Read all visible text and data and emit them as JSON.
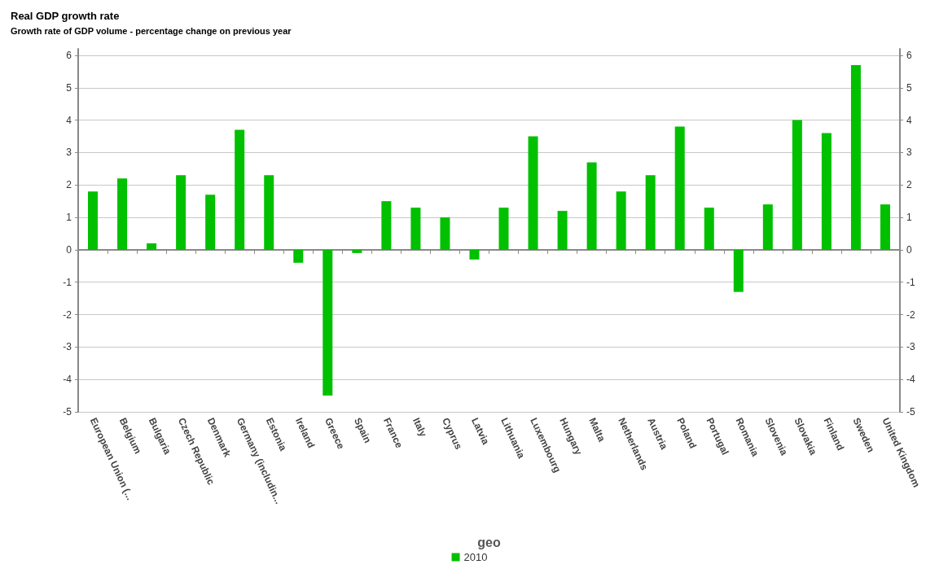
{
  "chart_data": {
    "type": "bar",
    "title": "Real GDP growth rate",
    "subtitle": "Growth rate of GDP volume - percentage change on previous year",
    "xlabel": "geo",
    "categories": [
      "European Union (...",
      "Belgium",
      "Bulgaria",
      "Czech Republic",
      "Denmark",
      "Germany (includin...",
      "Estonia",
      "Ireland",
      "Greece",
      "Spain",
      "France",
      "Italy",
      "Cyprus",
      "Latvia",
      "Lithuania",
      "Luxembourg",
      "Hungary",
      "Malta",
      "Netherlands",
      "Austria",
      "Poland",
      "Portugal",
      "Romania",
      "Slovenia",
      "Slovakia",
      "Finland",
      "Sweden",
      "United Kingdom"
    ],
    "series": [
      {
        "name": "2010",
        "color": "#00c000",
        "values": [
          1.8,
          2.2,
          0.2,
          2.3,
          1.7,
          3.7,
          2.3,
          -0.4,
          -4.5,
          -0.1,
          1.5,
          1.3,
          1.0,
          -0.3,
          1.3,
          3.5,
          1.2,
          2.7,
          1.8,
          2.3,
          3.8,
          1.3,
          -1.3,
          1.4,
          4.0,
          3.6,
          5.7,
          1.4
        ]
      }
    ],
    "ylim": [
      -5,
      6.2
    ],
    "yticks": [
      -5,
      -4,
      -3,
      -2,
      -1,
      0,
      1,
      2,
      3,
      4,
      5,
      6
    ],
    "y2lim": [
      -5,
      6.2
    ],
    "y2ticks": [
      -5,
      -4,
      -3,
      -2,
      -1,
      0,
      1,
      2,
      3,
      4,
      5,
      6
    ],
    "grid": "y",
    "legend": "bottom"
  }
}
